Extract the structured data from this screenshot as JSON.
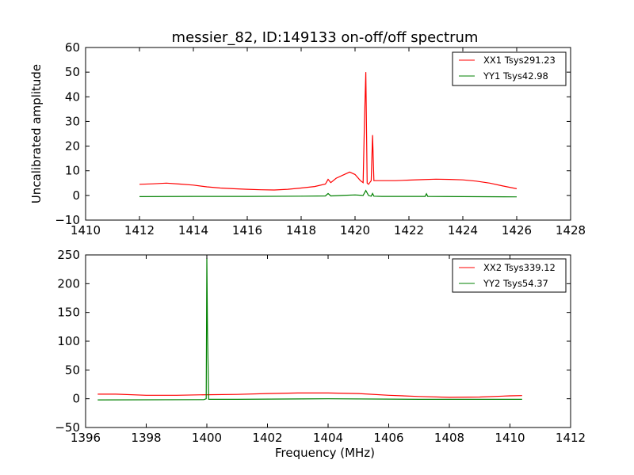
{
  "chart_data": [
    {
      "type": "line",
      "title": "messier_82, ID:149133 on-off/off spectrum",
      "xlabel": "",
      "ylabel": "Uncalibrated amplitude",
      "xlim": [
        1410,
        1428
      ],
      "ylim": [
        -10,
        60
      ],
      "xticks": [
        "1410",
        "1412",
        "1414",
        "1416",
        "1418",
        "1420",
        "1422",
        "1424",
        "1426",
        "1428"
      ],
      "yticks": [
        "−10",
        "0",
        "10",
        "20",
        "30",
        "40",
        "50",
        "60"
      ],
      "legend": "top-right",
      "series": [
        {
          "name": "XX1 Tsys291.23",
          "color": "#ff0000",
          "x": [
            1412,
            1412.5,
            1413,
            1413.5,
            1414,
            1414.5,
            1415,
            1415.5,
            1416,
            1416.5,
            1417,
            1417.5,
            1418,
            1418.5,
            1418.9,
            1419.0,
            1419.1,
            1419.3,
            1419.6,
            1419.8,
            1420.0,
            1420.2,
            1420.3,
            1420.35,
            1420.4,
            1420.45,
            1420.5,
            1420.6,
            1420.65,
            1420.7,
            1420.8,
            1421,
            1421.5,
            1422,
            1422.5,
            1423,
            1423.5,
            1424,
            1424.5,
            1425,
            1425.5,
            1426
          ],
          "y": [
            4.5,
            4.7,
            5.0,
            4.6,
            4.2,
            3.5,
            3.0,
            2.7,
            2.5,
            2.3,
            2.2,
            2.5,
            3.0,
            3.6,
            4.6,
            6.5,
            5.2,
            7.0,
            8.5,
            9.5,
            8.5,
            6.0,
            5.2,
            30.0,
            50.0,
            5.0,
            4.5,
            6.0,
            24.5,
            6.0,
            6.0,
            6.0,
            6.0,
            6.2,
            6.4,
            6.6,
            6.5,
            6.3,
            5.8,
            5.0,
            3.8,
            2.7
          ]
        },
        {
          "name": "YY1 Tsys42.98",
          "color": "#008000",
          "x": [
            1412,
            1414,
            1416,
            1418,
            1418.9,
            1419.0,
            1419.1,
            1419.5,
            1420.0,
            1420.3,
            1420.4,
            1420.5,
            1420.6,
            1420.65,
            1420.7,
            1421,
            1422,
            1422.6,
            1422.65,
            1422.7,
            1424,
            1426
          ],
          "y": [
            -0.5,
            -0.4,
            -0.4,
            -0.3,
            -0.2,
            0.8,
            -0.2,
            0.0,
            0.2,
            0.0,
            2.0,
            0.0,
            -0.3,
            0.8,
            -0.3,
            -0.4,
            -0.4,
            -0.4,
            0.7,
            -0.4,
            -0.5,
            -0.6
          ]
        }
      ]
    },
    {
      "type": "line",
      "title": "",
      "xlabel": "Frequency (MHz)",
      "ylabel": "",
      "xlim": [
        1396,
        1412
      ],
      "ylim": [
        -50,
        250
      ],
      "xticks": [
        "1396",
        "1398",
        "1400",
        "1402",
        "1404",
        "1406",
        "1408",
        "1410",
        "1412"
      ],
      "yticks": [
        "−50",
        "0",
        "50",
        "100",
        "150",
        "200",
        "250"
      ],
      "legend": "top-right",
      "series": [
        {
          "name": "XX2 Tsys339.12",
          "color": "#ff0000",
          "x": [
            1396.4,
            1397,
            1398,
            1399,
            1400,
            1401,
            1402,
            1403,
            1404,
            1405,
            1406,
            1407,
            1408,
            1409,
            1410,
            1410.4
          ],
          "y": [
            8,
            8,
            6,
            6,
            7,
            7.5,
            9,
            10,
            10,
            9,
            6,
            4,
            2.5,
            3,
            5,
            5.5
          ]
        },
        {
          "name": "YY2 Tsys54.37",
          "color": "#008000",
          "x": [
            1396.4,
            1399.9,
            1399.98,
            1400.0,
            1400.02,
            1400.06,
            1401,
            1404,
            1407,
            1410.4
          ],
          "y": [
            -2,
            -1.5,
            0,
            245,
            120,
            -1,
            -1,
            0,
            -1,
            -1
          ]
        }
      ]
    }
  ]
}
